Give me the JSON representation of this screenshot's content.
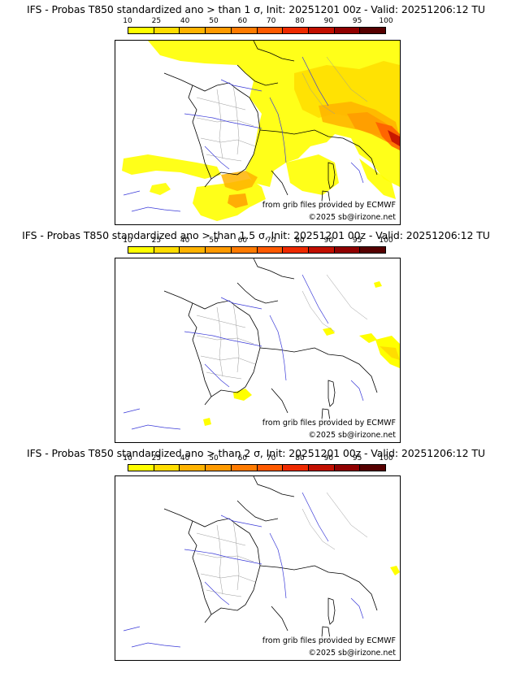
{
  "legend": {
    "ticks": [
      "10",
      "25",
      "40",
      "50",
      "60",
      "70",
      "80",
      "90",
      "95",
      "100"
    ],
    "colors": [
      "#ffff00",
      "#ffdd00",
      "#ffb300",
      "#ff9a00",
      "#ff7b00",
      "#ff5a00",
      "#ee2a00",
      "#c20f00",
      "#900000",
      "#560000"
    ]
  },
  "panels": [
    {
      "title": "IFS - Probas T850  standardized ano > than 1 σ, Init: 20251201 00z - Valid: 20251206:12 TU",
      "source_credit": "from grib files provided by ECMWF",
      "copyright": "©2025 sb@irizone.net"
    },
    {
      "title": "IFS - Probas T850  standardized ano > than 1.5 σ, Init: 20251201 00z - Valid: 20251206:12 TU",
      "source_credit": "from grib files provided by ECMWF",
      "copyright": "©2025 sb@irizone.net"
    },
    {
      "title": "IFS - Probas T850  standardized ano > than 2 σ, Init: 20251201 00z - Valid: 20251206:12 TU",
      "source_credit": "from grib files provided by ECMWF",
      "copyright": "©2025 sb@irizone.net"
    }
  ]
}
